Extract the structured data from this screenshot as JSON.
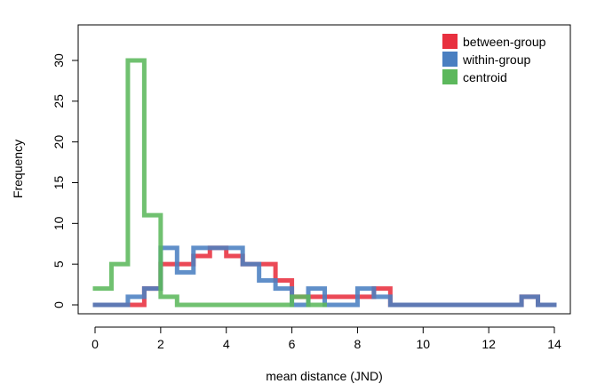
{
  "chart_data": {
    "type": "line",
    "style": "step-histogram",
    "xlabel": "mean distance (JND)",
    "ylabel": "Frequency",
    "xlim": [
      0,
      14
    ],
    "ylim": [
      0,
      30
    ],
    "x_ticks": [
      0,
      2,
      4,
      6,
      8,
      10,
      12,
      14
    ],
    "y_ticks": [
      0,
      5,
      10,
      15,
      20,
      25,
      30
    ],
    "grid": false,
    "legend_position": "top-right",
    "series": [
      {
        "name": "between-group",
        "color": "#e8303f",
        "x": [
          0,
          0.5,
          1,
          1.5,
          2,
          2.5,
          3,
          3.5,
          4,
          4.5,
          5,
          5.5,
          6,
          6.5,
          7,
          7.5,
          8,
          8.5,
          9,
          9.5,
          10,
          10.5,
          11,
          11.5,
          12,
          12.5,
          13,
          13.5,
          14
        ],
        "y": [
          0,
          0,
          0,
          2,
          5,
          5,
          6,
          7,
          6,
          5,
          5,
          3,
          1,
          1,
          1,
          1,
          1,
          2,
          0,
          0,
          0,
          0,
          0,
          0,
          0,
          0,
          1,
          0,
          0
        ]
      },
      {
        "name": "within-group",
        "color": "#4a7fc1",
        "x": [
          0,
          0.5,
          1,
          1.5,
          2,
          2.5,
          3,
          3.5,
          4,
          4.5,
          5,
          5.5,
          6,
          6.5,
          7,
          7.5,
          8,
          8.5,
          9,
          9.5,
          10,
          10.5,
          11,
          11.5,
          12,
          12.5,
          13,
          13.5,
          14
        ],
        "y": [
          0,
          0,
          1,
          2,
          7,
          4,
          7,
          7,
          7,
          5,
          3,
          2,
          0,
          2,
          0,
          0,
          2,
          1,
          0,
          0,
          0,
          0,
          0,
          0,
          0,
          0,
          1,
          0,
          0
        ]
      },
      {
        "name": "centroid",
        "color": "#5cb85c",
        "x": [
          0,
          0.5,
          1,
          1.5,
          2,
          2.5,
          3,
          3.5,
          4,
          4.5,
          5,
          5.5,
          6,
          6.5,
          7
        ],
        "y": [
          2,
          5,
          30,
          11,
          1,
          0,
          0,
          0,
          0,
          0,
          0,
          0,
          1,
          0,
          0
        ]
      }
    ]
  }
}
